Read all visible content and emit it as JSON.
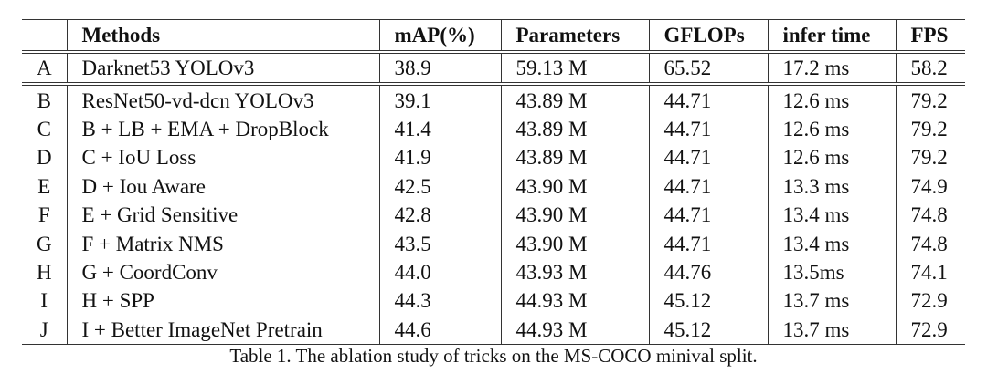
{
  "table": {
    "headers": [
      "",
      "Methods",
      "mAP(%)",
      "Parameters",
      "GFLOPs",
      "infer time",
      "FPS"
    ],
    "rows": [
      [
        "A",
        "Darknet53 YOLOv3",
        "38.9",
        "59.13 M",
        "65.52",
        "17.2 ms",
        "58.2"
      ],
      [
        "B",
        "ResNet50-vd-dcn YOLOv3",
        "39.1",
        "43.89 M",
        "44.71",
        "12.6 ms",
        "79.2"
      ],
      [
        "C",
        "B + LB + EMA + DropBlock",
        "41.4",
        "43.89 M",
        "44.71",
        "12.6 ms",
        "79.2"
      ],
      [
        "D",
        "C + IoU Loss",
        "41.9",
        "43.89 M",
        "44.71",
        "12.6 ms",
        "79.2"
      ],
      [
        "E",
        "D + Iou Aware",
        "42.5",
        "43.90 M",
        "44.71",
        "13.3 ms",
        "74.9"
      ],
      [
        "F",
        "E + Grid Sensitive",
        "42.8",
        "43.90 M",
        "44.71",
        "13.4 ms",
        "74.8"
      ],
      [
        "G",
        "F + Matrix NMS",
        "43.5",
        "43.90 M",
        "44.71",
        "13.4 ms",
        "74.8"
      ],
      [
        "H",
        "G + CoordConv",
        "44.0",
        "43.93 M",
        "44.76",
        "13.5ms",
        "74.1"
      ],
      [
        "I",
        "H + SPP",
        "44.3",
        "44.93 M",
        "45.12",
        "13.7 ms",
        "72.9"
      ],
      [
        "J",
        "I + Better ImageNet Pretrain",
        "44.6",
        "44.93 M",
        "45.12",
        "13.7 ms",
        "72.9"
      ]
    ]
  },
  "caption": "Table 1. The ablation study of tricks on the MS-COCO minival split."
}
